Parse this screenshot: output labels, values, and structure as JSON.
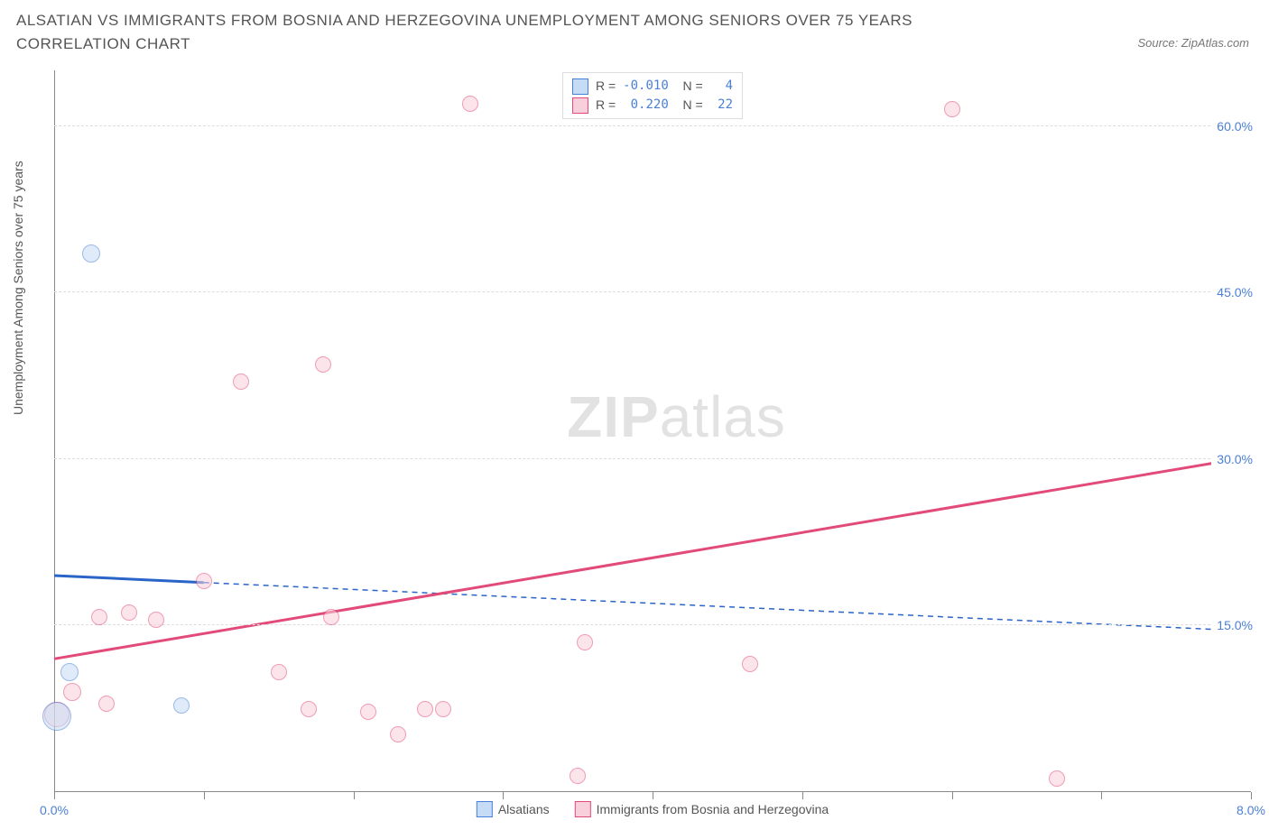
{
  "title": "ALSATIAN VS IMMIGRANTS FROM BOSNIA AND HERZEGOVINA UNEMPLOYMENT AMONG SENIORS OVER 75 YEARS CORRELATION CHART",
  "source": "Source: ZipAtlas.com",
  "y_axis_label": "Unemployment Among Seniors over 75 years",
  "watermark_bold": "ZIP",
  "watermark_light": "atlas",
  "chart": {
    "type": "scatter",
    "background_color": "#ffffff",
    "grid_color": "#dddddd",
    "axis_color": "#888888",
    "tick_label_color": "#4a7fd8",
    "title_color": "#555555",
    "title_fontsize": 17,
    "label_fontsize": 14,
    "xlim": [
      0,
      8
    ],
    "ylim": [
      0,
      65
    ],
    "x_ticks": [
      0,
      1,
      2,
      3,
      4,
      5,
      6,
      7,
      8
    ],
    "x_tick_labels": {
      "0": "0.0%",
      "8": "8.0%"
    },
    "y_ticks": [
      15,
      30,
      45,
      60
    ],
    "y_tick_labels": {
      "15": "15.0%",
      "30": "30.0%",
      "45": "45.0%",
      "60": "60.0%"
    },
    "series": [
      {
        "name": "Alsatians",
        "label": "Alsatians",
        "fill_color": "#c6dcf5",
        "stroke_color": "#4a7fd8",
        "fill_opacity": 0.55,
        "marker_radius": 9,
        "trend_color": "#2a64c8",
        "trend_width": 3,
        "trend_solid_until_x": 1.0,
        "trend_dash": "6,5",
        "trend": {
          "x1": 0,
          "y1": 19.5,
          "x2": 8,
          "y2": 14.5
        },
        "R": "-0.010",
        "N": "4",
        "points": [
          {
            "x": 0.25,
            "y": 48.5,
            "r": 10
          },
          {
            "x": 0.1,
            "y": 10.8,
            "r": 10
          },
          {
            "x": 0.85,
            "y": 7.8,
            "r": 9
          },
          {
            "x": 0.02,
            "y": 6.8,
            "r": 16
          }
        ]
      },
      {
        "name": "Immigrants from Bosnia and Herzegovina",
        "label": "Immigrants from Bosnia and Herzegovina",
        "fill_color": "#f8d0dc",
        "stroke_color": "#e24a7a",
        "fill_opacity": 0.55,
        "marker_radius": 9,
        "trend_color": "#e24a7a",
        "trend_width": 3,
        "trend_solid_until_x": 8,
        "trend_dash": "",
        "trend": {
          "x1": 0,
          "y1": 12.0,
          "x2": 8,
          "y2": 30.2
        },
        "R": "0.220",
        "N": "22",
        "points": [
          {
            "x": 2.78,
            "y": 62.0,
            "r": 9
          },
          {
            "x": 6.0,
            "y": 61.5,
            "r": 9
          },
          {
            "x": 1.25,
            "y": 37.0,
            "r": 9
          },
          {
            "x": 1.8,
            "y": 38.5,
            "r": 9
          },
          {
            "x": 1.0,
            "y": 19.0,
            "r": 9
          },
          {
            "x": 0.5,
            "y": 16.2,
            "r": 9
          },
          {
            "x": 0.68,
            "y": 15.5,
            "r": 9
          },
          {
            "x": 0.3,
            "y": 15.8,
            "r": 9
          },
          {
            "x": 1.85,
            "y": 15.8,
            "r": 9
          },
          {
            "x": 3.55,
            "y": 13.5,
            "r": 9
          },
          {
            "x": 4.65,
            "y": 11.5,
            "r": 9
          },
          {
            "x": 1.5,
            "y": 10.8,
            "r": 9
          },
          {
            "x": 0.12,
            "y": 9.0,
            "r": 10
          },
          {
            "x": 0.35,
            "y": 8.0,
            "r": 9
          },
          {
            "x": 1.7,
            "y": 7.5,
            "r": 9
          },
          {
            "x": 2.1,
            "y": 7.2,
            "r": 9
          },
          {
            "x": 2.48,
            "y": 7.5,
            "r": 9
          },
          {
            "x": 2.6,
            "y": 7.5,
            "r": 9
          },
          {
            "x": 2.3,
            "y": 5.2,
            "r": 9
          },
          {
            "x": 3.5,
            "y": 1.5,
            "r": 9
          },
          {
            "x": 6.7,
            "y": 1.2,
            "r": 9
          },
          {
            "x": 0.02,
            "y": 7.0,
            "r": 14
          }
        ]
      }
    ]
  }
}
